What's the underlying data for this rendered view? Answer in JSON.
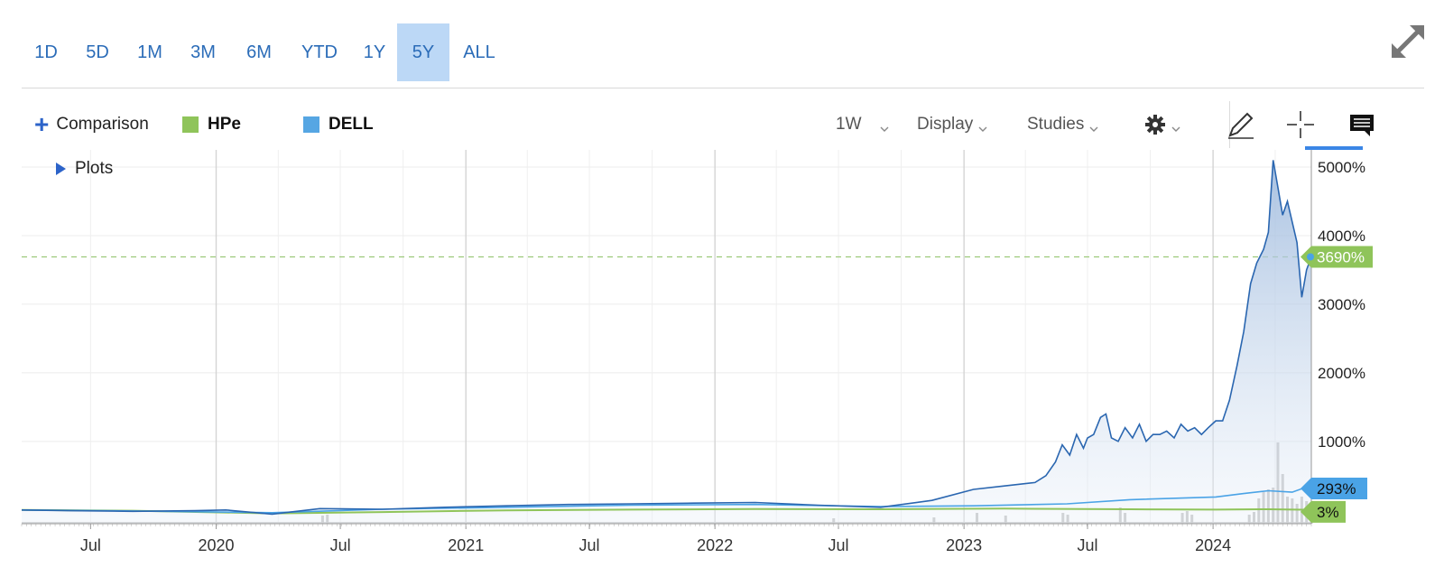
{
  "ranges": [
    {
      "label": "1D",
      "active": false
    },
    {
      "label": "5D",
      "active": false
    },
    {
      "label": "1M",
      "active": false
    },
    {
      "label": "3M",
      "active": false
    },
    {
      "label": "6M",
      "active": false
    },
    {
      "label": "YTD",
      "active": false
    },
    {
      "label": "1Y",
      "active": false
    },
    {
      "label": "5Y",
      "active": true
    },
    {
      "label": "ALL",
      "active": false
    }
  ],
  "toolbar": {
    "comparison_label": "Comparison",
    "interval_label": "1W",
    "display_label": "Display",
    "studies_label": "Studies"
  },
  "legend": [
    {
      "name": "HPe",
      "color": "#8fc45a"
    },
    {
      "name": "DELL",
      "color": "#56a6e3"
    }
  ],
  "plots_label": "Plots",
  "colors": {
    "accent": "#2b6cb8",
    "active_range_bg": "#bcd8f6",
    "main_line": "#2a66b0",
    "dell_line": "#4aa3e6",
    "hpe_line": "#8fc45a",
    "volume": "#c4c4c4"
  },
  "chart_data": {
    "type": "area",
    "y_unit": "%",
    "ylim": [
      -200,
      5250
    ],
    "yticks": [
      "1000%",
      "2000%",
      "3000%",
      "4000%",
      "5000%"
    ],
    "xticks": [
      "Jul",
      "2020",
      "Jul",
      "2021",
      "Jul",
      "2022",
      "Jul",
      "2023",
      "Jul",
      "2024"
    ],
    "x_range": [
      "2019-03-22",
      "2024-05-24"
    ],
    "grid": true,
    "reference_line": {
      "value": 3690,
      "label": "3690%"
    },
    "last_value_labels": [
      {
        "series": "main",
        "label": "3690%"
      },
      {
        "series": "DELL",
        "label": "293%"
      },
      {
        "series": "HPe",
        "label": "3%"
      }
    ],
    "series": [
      {
        "key": "main",
        "x": [
          "2019-03-22",
          "2019-06-01",
          "2019-09-01",
          "2019-12-01",
          "2020-01-15",
          "2020-03-23",
          "2020-06-01",
          "2020-09-01",
          "2020-12-01",
          "2021-03-01",
          "2021-06-01",
          "2021-09-01",
          "2021-12-01",
          "2022-03-01",
          "2022-06-01",
          "2022-09-01",
          "2022-11-15",
          "2023-01-15",
          "2023-03-01",
          "2023-04-15",
          "2023-05-01",
          "2023-05-15",
          "2023-05-25",
          "2023-06-05",
          "2023-06-15",
          "2023-06-25",
          "2023-07-01",
          "2023-07-10",
          "2023-07-20",
          "2023-07-28",
          "2023-08-05",
          "2023-08-15",
          "2023-08-25",
          "2023-09-05",
          "2023-09-15",
          "2023-09-25",
          "2023-10-05",
          "2023-10-15",
          "2023-10-25",
          "2023-11-05",
          "2023-11-15",
          "2023-11-25",
          "2023-12-05",
          "2023-12-15",
          "2023-12-25",
          "2024-01-05",
          "2024-01-15",
          "2024-01-25",
          "2024-02-05",
          "2024-02-15",
          "2024-02-25",
          "2024-03-05",
          "2024-03-15",
          "2024-03-22",
          "2024-03-29",
          "2024-04-05",
          "2024-04-12",
          "2024-04-19",
          "2024-04-26",
          "2024-05-03",
          "2024-05-10",
          "2024-05-17",
          "2024-05-24"
        ],
        "values": [
          0,
          -10,
          -20,
          -10,
          0,
          -60,
          20,
          10,
          40,
          60,
          80,
          90,
          100,
          110,
          70,
          40,
          140,
          300,
          350,
          400,
          500,
          700,
          950,
          800,
          1100,
          900,
          1050,
          1100,
          1350,
          1400,
          1050,
          1000,
          1200,
          1050,
          1250,
          1000,
          1100,
          1100,
          1150,
          1050,
          1250,
          1150,
          1200,
          1100,
          1200,
          1300,
          1300,
          1600,
          2100,
          2600,
          3300,
          3600,
          3800,
          4050,
          5100,
          4700,
          4300,
          4500,
          4200,
          3900,
          3100,
          3500,
          3690
        ]
      },
      {
        "name": "DELL",
        "x": [
          "2019-03-22",
          "2019-09-01",
          "2020-03-23",
          "2020-09-01",
          "2021-03-01",
          "2021-09-01",
          "2022-03-01",
          "2022-09-01",
          "2023-01-15",
          "2023-06-01",
          "2023-09-01",
          "2024-01-05",
          "2024-02-15",
          "2024-03-22",
          "2024-04-26",
          "2024-05-10",
          "2024-05-24"
        ],
        "values": [
          0,
          -15,
          -40,
          10,
          40,
          70,
          80,
          50,
          60,
          90,
          150,
          190,
          240,
          280,
          260,
          310,
          293
        ]
      },
      {
        "name": "HPe",
        "x": [
          "2019-03-22",
          "2019-09-01",
          "2020-03-23",
          "2020-09-01",
          "2021-03-01",
          "2021-09-01",
          "2022-03-01",
          "2022-09-01",
          "2023-03-01",
          "2023-09-01",
          "2024-01-05",
          "2024-03-22",
          "2024-05-24"
        ],
        "values": [
          0,
          -10,
          -50,
          -30,
          -5,
          5,
          15,
          10,
          20,
          10,
          5,
          10,
          3
        ]
      }
    ],
    "volume": {
      "x": [
        "2020-06-05",
        "2020-06-12",
        "2022-06-24",
        "2022-11-18",
        "2023-01-20",
        "2023-03-03",
        "2023-05-26",
        "2023-06-02",
        "2023-08-18",
        "2023-08-25",
        "2023-11-17",
        "2023-11-24",
        "2023-12-01",
        "2024-02-23",
        "2024-03-01",
        "2024-03-08",
        "2024-03-15",
        "2024-03-22",
        "2024-03-29",
        "2024-04-05",
        "2024-04-12",
        "2024-04-19",
        "2024-04-26",
        "2024-05-03",
        "2024-05-10",
        "2024-05-17",
        "2024-05-24"
      ],
      "values": [
        0.09,
        0.1,
        0.06,
        0.07,
        0.12,
        0.09,
        0.12,
        0.1,
        0.18,
        0.12,
        0.12,
        0.14,
        0.1,
        0.1,
        0.13,
        0.28,
        0.35,
        0.38,
        0.4,
        0.9,
        0.55,
        0.3,
        0.28,
        0.22,
        0.3,
        0.25,
        0.16
      ]
    }
  }
}
